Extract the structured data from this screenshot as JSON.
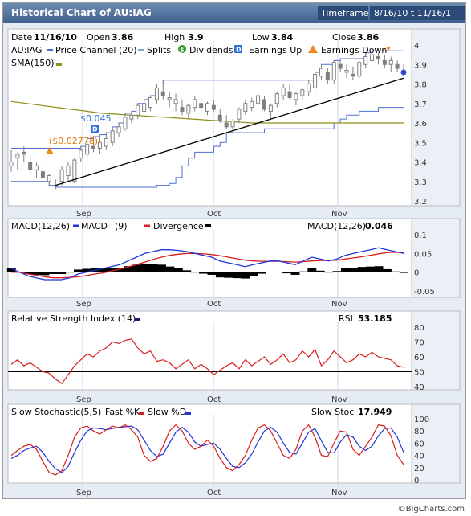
{
  "title": "Historical Chart of AU:IAG",
  "timeframe_label": "Timeframe",
  "timeframe_value": "8/16/10 t 11/16/1",
  "credit": "©BigCharts.com",
  "quote": {
    "date_label": "Date",
    "date": "11/16/10",
    "open_label": "Open",
    "open": "3.86",
    "high_label": "High",
    "high": "3.9",
    "low_label": "Low",
    "low": "3.84",
    "close_label": "Close",
    "close": "3.86"
  },
  "legend": {
    "symbol": "AU:IAG",
    "price_channel": "Price Channel (20)",
    "splits": "Splits",
    "dividends": "Dividends",
    "earnings_up": "Earnings Up",
    "earnings_down": "Earnings Down",
    "sma": "SMA(150)"
  },
  "annotations": {
    "dividend_1": "$0.045",
    "dividend_2": "($0.02778)"
  },
  "x_labels": [
    "Sep",
    "Oct",
    "Nov"
  ],
  "colors": {
    "price": "#7f7f7f",
    "channel": "#4b6fd3",
    "sma": "#8f8f17",
    "trend": "#000000",
    "macd": "#1e36d8",
    "ema": "#d81e1e",
    "rsi": "#d81e1e",
    "fastk": "#d81e1e",
    "slowd": "#1e36d8"
  },
  "chart_data": [
    {
      "type": "candlestick",
      "title": "AU:IAG",
      "ylim": [
        3.2,
        4.0
      ],
      "yticks": [
        "4",
        "3.9",
        "3.8",
        "3.7",
        "3.6",
        "3.5",
        "3.4",
        "3.3",
        "3.2"
      ],
      "x_labels": [
        "Sep",
        "Oct",
        "Nov"
      ],
      "ohlc": [
        [
          3.38,
          3.46,
          3.35,
          3.4
        ],
        [
          3.42,
          3.45,
          3.36,
          3.44
        ],
        [
          3.45,
          3.48,
          3.4,
          3.44
        ],
        [
          3.4,
          3.44,
          3.34,
          3.36
        ],
        [
          3.36,
          3.4,
          3.32,
          3.38
        ],
        [
          3.35,
          3.38,
          3.32,
          3.32
        ],
        [
          3.3,
          3.34,
          3.28,
          3.33
        ],
        [
          3.28,
          3.31,
          3.26,
          3.28
        ],
        [
          3.3,
          3.38,
          3.28,
          3.36
        ],
        [
          3.33,
          3.4,
          3.3,
          3.38
        ],
        [
          3.3,
          3.42,
          3.29,
          3.41
        ],
        [
          3.42,
          3.48,
          3.4,
          3.46
        ],
        [
          3.44,
          3.52,
          3.42,
          3.49
        ],
        [
          3.48,
          3.53,
          3.45,
          3.47
        ],
        [
          3.47,
          3.54,
          3.44,
          3.5
        ],
        [
          3.48,
          3.55,
          3.46,
          3.52
        ],
        [
          3.5,
          3.58,
          3.48,
          3.56
        ],
        [
          3.55,
          3.6,
          3.53,
          3.58
        ],
        [
          3.57,
          3.65,
          3.56,
          3.63
        ],
        [
          3.62,
          3.66,
          3.6,
          3.64
        ],
        [
          3.64,
          3.7,
          3.62,
          3.69
        ],
        [
          3.66,
          3.72,
          3.65,
          3.7
        ],
        [
          3.68,
          3.74,
          3.66,
          3.73
        ],
        [
          3.72,
          3.8,
          3.7,
          3.78
        ],
        [
          3.76,
          3.82,
          3.72,
          3.74
        ],
        [
          3.72,
          3.76,
          3.68,
          3.73
        ],
        [
          3.7,
          3.75,
          3.66,
          3.72
        ],
        [
          3.68,
          3.72,
          3.64,
          3.66
        ],
        [
          3.65,
          3.7,
          3.62,
          3.69
        ],
        [
          3.68,
          3.74,
          3.66,
          3.72
        ],
        [
          3.7,
          3.73,
          3.66,
          3.68
        ],
        [
          3.66,
          3.71,
          3.64,
          3.7
        ],
        [
          3.69,
          3.72,
          3.66,
          3.67
        ],
        [
          3.64,
          3.67,
          3.6,
          3.61
        ],
        [
          3.6,
          3.64,
          3.57,
          3.58
        ],
        [
          3.58,
          3.62,
          3.55,
          3.61
        ],
        [
          3.62,
          3.68,
          3.6,
          3.67
        ],
        [
          3.66,
          3.72,
          3.64,
          3.7
        ],
        [
          3.68,
          3.73,
          3.66,
          3.71
        ],
        [
          3.7,
          3.76,
          3.69,
          3.74
        ],
        [
          3.72,
          3.74,
          3.66,
          3.67
        ],
        [
          3.66,
          3.7,
          3.62,
          3.69
        ],
        [
          3.7,
          3.76,
          3.68,
          3.75
        ],
        [
          3.74,
          3.8,
          3.72,
          3.78
        ],
        [
          3.76,
          3.8,
          3.72,
          3.73
        ],
        [
          3.72,
          3.76,
          3.69,
          3.75
        ],
        [
          3.74,
          3.78,
          3.72,
          3.77
        ],
        [
          3.76,
          3.82,
          3.74,
          3.8
        ],
        [
          3.78,
          3.86,
          3.76,
          3.85
        ],
        [
          3.84,
          3.9,
          3.82,
          3.88
        ],
        [
          3.86,
          3.88,
          3.8,
          3.82
        ],
        [
          3.82,
          3.92,
          3.8,
          3.91
        ],
        [
          3.9,
          3.93,
          3.86,
          3.88
        ],
        [
          3.86,
          3.9,
          3.83,
          3.87
        ],
        [
          3.85,
          3.89,
          3.82,
          3.84
        ],
        [
          3.84,
          3.92,
          3.83,
          3.91
        ],
        [
          3.9,
          3.96,
          3.88,
          3.94
        ],
        [
          3.92,
          3.97,
          3.9,
          3.95
        ],
        [
          3.94,
          3.96,
          3.9,
          3.93
        ],
        [
          3.92,
          3.95,
          3.88,
          3.9
        ],
        [
          3.9,
          3.94,
          3.86,
          3.92
        ],
        [
          3.9,
          3.92,
          3.86,
          3.88
        ],
        [
          3.86,
          3.9,
          3.84,
          3.86
        ]
      ],
      "channel_upper": [
        3.47,
        3.47,
        3.47,
        3.47,
        3.47,
        3.47,
        3.47,
        3.47,
        3.47,
        3.47,
        3.47,
        3.48,
        3.52,
        3.53,
        3.54,
        3.55,
        3.58,
        3.6,
        3.65,
        3.66,
        3.7,
        3.72,
        3.74,
        3.8,
        3.82,
        3.82,
        3.82,
        3.82,
        3.82,
        3.82,
        3.82,
        3.82,
        3.82,
        3.82,
        3.82,
        3.82,
        3.82,
        3.82,
        3.82,
        3.82,
        3.82,
        3.82,
        3.82,
        3.82,
        3.82,
        3.82,
        3.82,
        3.82,
        3.86,
        3.9,
        3.9,
        3.92,
        3.93,
        3.93,
        3.93,
        3.93,
        3.96,
        3.97,
        3.97,
        3.97,
        3.97,
        3.97,
        3.97
      ],
      "channel_lower": [
        3.3,
        3.3,
        3.3,
        3.3,
        3.3,
        3.3,
        3.28,
        3.27,
        3.27,
        3.27,
        3.27,
        3.27,
        3.27,
        3.27,
        3.27,
        3.27,
        3.27,
        3.27,
        3.27,
        3.27,
        3.27,
        3.27,
        3.27,
        3.28,
        3.28,
        3.29,
        3.32,
        3.38,
        3.42,
        3.45,
        3.45,
        3.45,
        3.48,
        3.5,
        3.55,
        3.55,
        3.55,
        3.55,
        3.55,
        3.55,
        3.57,
        3.57,
        3.57,
        3.57,
        3.57,
        3.57,
        3.57,
        3.57,
        3.57,
        3.57,
        3.57,
        3.6,
        3.62,
        3.64,
        3.64,
        3.66,
        3.66,
        3.66,
        3.68,
        3.68,
        3.68,
        3.68,
        3.68
      ],
      "sma150": [
        3.71,
        3.7,
        3.69,
        3.68,
        3.67,
        3.66,
        3.65,
        3.645,
        3.64,
        3.635,
        3.63,
        3.625,
        3.62,
        3.615,
        3.61,
        3.605,
        3.6,
        3.6,
        3.6,
        3.6,
        3.6,
        3.6,
        3.6,
        3.6,
        3.6,
        3.6,
        3.6
      ],
      "trendline": [
        [
          7,
          3.28
        ],
        [
          62,
          3.83
        ]
      ]
    },
    {
      "type": "line",
      "title": "MACD(12,26)",
      "value_label": "MACD(12,26)",
      "value": "0.046",
      "ylim": [
        -0.05,
        0.1
      ],
      "yticks": [
        "0.1",
        "0.05",
        "0",
        "-0.05"
      ],
      "series": [
        {
          "name": "MACD",
          "values": [
            0.01,
            0.0,
            -0.01,
            -0.015,
            -0.02,
            -0.02,
            -0.02,
            -0.015,
            -0.005,
            0.0,
            0.005,
            0.01,
            0.015,
            0.02,
            0.03,
            0.04,
            0.05,
            0.055,
            0.06,
            0.06,
            0.058,
            0.055,
            0.05,
            0.045,
            0.04,
            0.03,
            0.025,
            0.02,
            0.015,
            0.02,
            0.025,
            0.03,
            0.03,
            0.025,
            0.02,
            0.03,
            0.04,
            0.035,
            0.03,
            0.035,
            0.045,
            0.05,
            0.055,
            0.06,
            0.065,
            0.06,
            0.055,
            0.05
          ]
        },
        {
          "name": "MACD EMA",
          "values": [
            0.0,
            0.0,
            -0.005,
            -0.008,
            -0.012,
            -0.015,
            -0.015,
            -0.014,
            -0.012,
            -0.009,
            -0.005,
            -0.002,
            0.003,
            0.008,
            0.014,
            0.02,
            0.027,
            0.034,
            0.04,
            0.045,
            0.048,
            0.05,
            0.05,
            0.049,
            0.047,
            0.044,
            0.04,
            0.036,
            0.032,
            0.03,
            0.029,
            0.029,
            0.029,
            0.028,
            0.027,
            0.028,
            0.03,
            0.031,
            0.031,
            0.032,
            0.035,
            0.038,
            0.041,
            0.045,
            0.049,
            0.052,
            0.053,
            0.052
          ]
        },
        {
          "name": "Divergence",
          "values": [
            0.01,
            0.0,
            -0.005,
            -0.007,
            -0.008,
            -0.005,
            -0.005,
            -0.001,
            0.007,
            0.009,
            0.01,
            0.012,
            0.012,
            0.012,
            0.016,
            0.02,
            0.023,
            0.021,
            0.02,
            0.015,
            0.01,
            0.005,
            0.0,
            -0.004,
            -0.007,
            -0.014,
            -0.015,
            -0.016,
            -0.017,
            -0.01,
            -0.004,
            0.001,
            0.001,
            -0.003,
            -0.007,
            0.002,
            0.01,
            0.004,
            -0.001,
            0.003,
            0.01,
            0.012,
            0.014,
            0.015,
            0.016,
            0.008,
            0.002,
            -0.002
          ]
        }
      ]
    },
    {
      "type": "line",
      "title": "Relative Strength Index (14)",
      "value_label": "RSI",
      "value": "53.185",
      "ylim": [
        40,
        80
      ],
      "yticks": [
        "80",
        "70",
        "60",
        "50",
        "40"
      ],
      "reference_line": 50,
      "series": [
        {
          "name": "RSI",
          "values": [
            55,
            58,
            54,
            56,
            53,
            50,
            49,
            45,
            42,
            48,
            54,
            58,
            62,
            60,
            64,
            66,
            70,
            69,
            71,
            72,
            66,
            62,
            64,
            57,
            58,
            56,
            52,
            55,
            58,
            52,
            55,
            52,
            48,
            51,
            54,
            56,
            52,
            58,
            54,
            57,
            60,
            55,
            58,
            62,
            56,
            58,
            64,
            60,
            65,
            54,
            58,
            64,
            60,
            56,
            58,
            62,
            60,
            63,
            60,
            59,
            58,
            54,
            53
          ]
        }
      ]
    },
    {
      "type": "line",
      "title": "Slow Stochastic(5,5)",
      "value_label": "Slow Stoc",
      "value": "17.949",
      "ylim": [
        0,
        100
      ],
      "yticks": [
        "100",
        "80",
        "60",
        "40",
        "20",
        "0"
      ],
      "series": [
        {
          "name": "Fast %K",
          "values": [
            40,
            48,
            55,
            58,
            50,
            30,
            12,
            8,
            15,
            40,
            70,
            85,
            88,
            80,
            75,
            82,
            88,
            85,
            90,
            82,
            70,
            40,
            30,
            35,
            55,
            80,
            90,
            80,
            60,
            50,
            55,
            65,
            55,
            35,
            20,
            15,
            25,
            40,
            65,
            85,
            90,
            80,
            60,
            40,
            35,
            50,
            80,
            90,
            70,
            40,
            38,
            60,
            80,
            78,
            50,
            40,
            55,
            70,
            90,
            88,
            72,
            40,
            25
          ]
        },
        {
          "name": "Slow %D",
          "values": [
            35,
            40,
            48,
            52,
            55,
            45,
            30,
            18,
            12,
            22,
            45,
            65,
            80,
            85,
            84,
            82,
            84,
            86,
            87,
            88,
            82,
            65,
            48,
            38,
            42,
            60,
            78,
            86,
            78,
            62,
            55,
            58,
            60,
            50,
            35,
            22,
            20,
            28,
            42,
            62,
            80,
            86,
            78,
            60,
            45,
            42,
            60,
            78,
            84,
            64,
            45,
            44,
            62,
            74,
            70,
            55,
            48,
            55,
            72,
            84,
            85,
            70,
            45
          ]
        }
      ]
    }
  ]
}
